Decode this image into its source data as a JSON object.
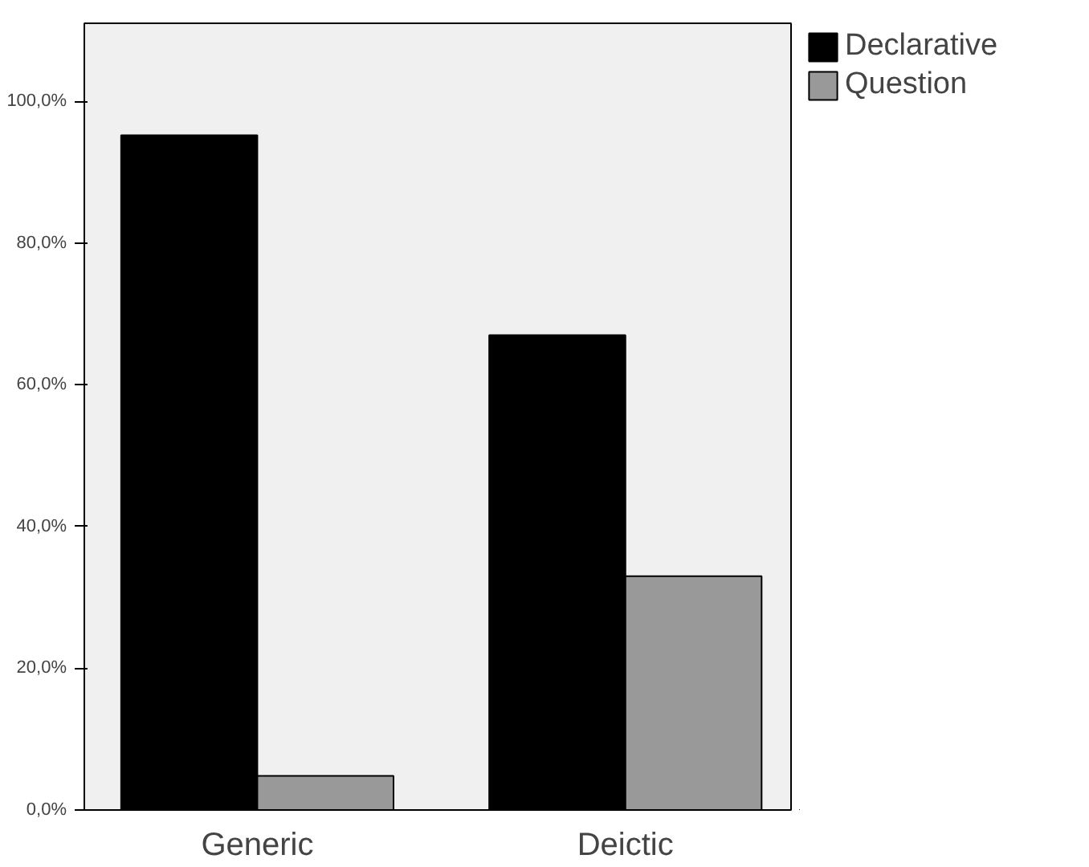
{
  "chart_data": {
    "type": "bar",
    "categories": [
      "Generic",
      "Deictic"
    ],
    "series": [
      {
        "name": "Declarative",
        "color": "#000000",
        "values": [
          95.2,
          67.0
        ]
      },
      {
        "name": "Question",
        "color": "#999999",
        "values": [
          4.8,
          33.0
        ]
      }
    ],
    "ylim": [
      0,
      111
    ],
    "yticks": [
      {
        "value": 0,
        "label": "0,0%"
      },
      {
        "value": 20,
        "label": "20,0%"
      },
      {
        "value": 40,
        "label": "40,0%"
      },
      {
        "value": 60,
        "label": "60,0%"
      },
      {
        "value": 80,
        "label": "80,0%"
      },
      {
        "value": 100,
        "label": "100,0%"
      }
    ],
    "grid": false,
    "legend": "top right"
  }
}
